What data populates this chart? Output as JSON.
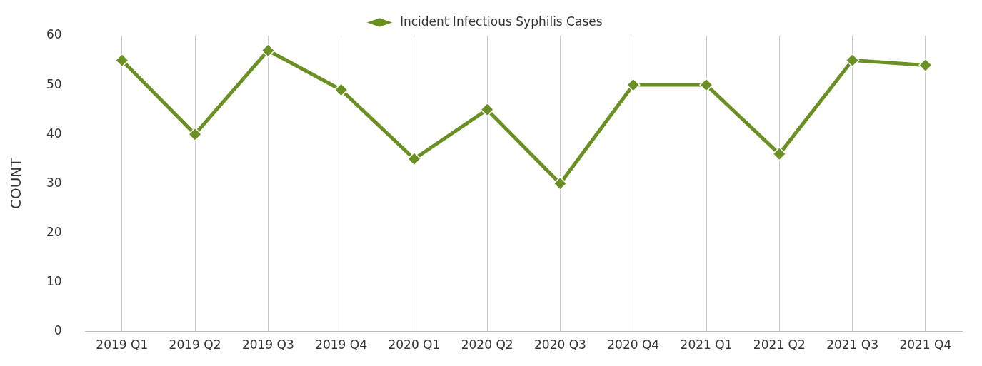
{
  "chart_data": {
    "type": "line",
    "ylabel": "COUNT",
    "categories": [
      "2019 Q1",
      "2019 Q2",
      "2019 Q3",
      "2019 Q4",
      "2020 Q1",
      "2020 Q2",
      "2020 Q3",
      "2020 Q4",
      "2021 Q1",
      "2021 Q2",
      "2021 Q3",
      "2021 Q4"
    ],
    "series": [
      {
        "name": "Incident Infectious Syphilis Cases",
        "color": "#6a8f23",
        "values": [
          55,
          40,
          57,
          49,
          35,
          45,
          30,
          50,
          50,
          36,
          55,
          54
        ]
      }
    ],
    "ylim": [
      0,
      60
    ],
    "yticks": [
      0,
      10,
      20,
      30,
      40,
      50,
      60
    ],
    "grid": "x",
    "legend": "top",
    "marker": "diamond",
    "line_style": "solid"
  }
}
